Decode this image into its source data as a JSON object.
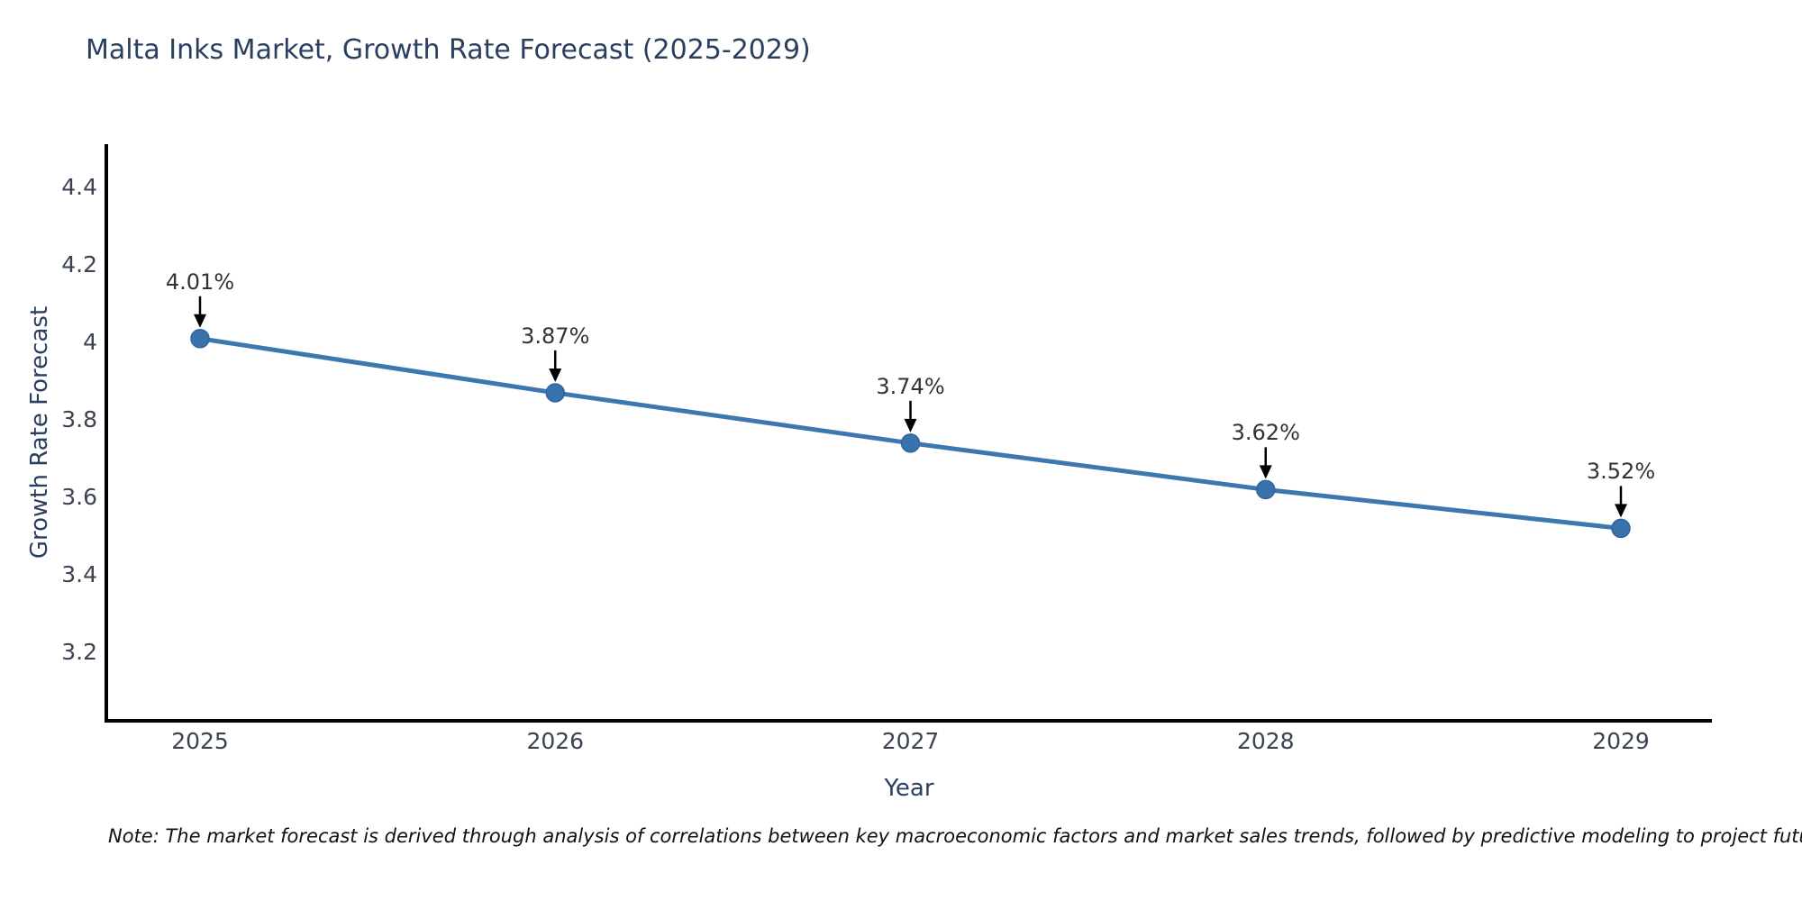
{
  "chart_data": {
    "type": "line",
    "title": "Malta Inks Market, Growth Rate Forecast (2025-2029)",
    "xlabel": "Year",
    "ylabel": "Growth Rate Forecast",
    "x": [
      2025,
      2026,
      2027,
      2028,
      2029
    ],
    "values": [
      4.01,
      3.87,
      3.74,
      3.62,
      3.52
    ],
    "point_labels": [
      "4.01%",
      "3.87%",
      "3.74%",
      "3.62%",
      "3.52%"
    ],
    "x_ticks": [
      "2025",
      "2026",
      "2027",
      "2028",
      "2029"
    ],
    "y_ticks": [
      4.4,
      4.2,
      4,
      3.8,
      3.6,
      3.4,
      3.2
    ],
    "ylim": [
      3.023,
      4.512
    ],
    "grid": false,
    "legend": "none",
    "line_color": "#3d77b0",
    "marker_color": "#3a72ab",
    "axis_color": "#000000",
    "annotation_color": "#333333",
    "title_color": "#2a3f5f",
    "tick_color": "#3b4252",
    "background_color": "#ffffff"
  },
  "note": {
    "text": "Note: The market forecast is derived through analysis of correlations between key macroeconomic factors and market sales trends, followed by predictive modeling to project future sales"
  }
}
